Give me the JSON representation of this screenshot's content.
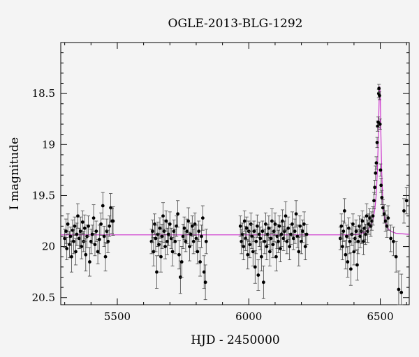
{
  "chart_data": {
    "type": "scatter",
    "title": "OGLE-2013-BLG-1292",
    "xlabel": "HJD - 2450000",
    "ylabel": "I magnitude",
    "xlim": [
      5285,
      6610
    ],
    "ylim": [
      20.57,
      18.0
    ],
    "y_inverted": true,
    "x_ticks": [
      5500,
      6000,
      6500
    ],
    "y_ticks": [
      18.5,
      19,
      19.5,
      20,
      20.5
    ],
    "grid": false,
    "baseline_mag": 19.885,
    "colors": {
      "points": "#000000",
      "model": "#cc33cc",
      "errorbar": "#444444"
    },
    "model_curve": {
      "x": [
        5285,
        6380,
        6420,
        6440,
        6455,
        6465,
        6473,
        6480,
        6485,
        6489,
        6492,
        6494,
        6496,
        6498,
        6500,
        6502,
        6505,
        6510,
        6518,
        6528,
        6540,
        6560,
        6610
      ],
      "y": [
        19.885,
        19.885,
        19.88,
        19.86,
        19.83,
        19.79,
        19.73,
        19.62,
        19.48,
        19.25,
        18.98,
        18.75,
        18.52,
        18.43,
        18.55,
        18.85,
        19.25,
        19.58,
        19.75,
        19.82,
        19.85,
        19.87,
        19.88
      ]
    },
    "series": [
      {
        "name": "",
        "points": [
          [
            5300,
            19.92,
            0.09
          ],
          [
            5305,
            19.85,
            0.12
          ],
          [
            5308,
            20.02,
            0.11
          ],
          [
            5312,
            19.78,
            0.1
          ],
          [
            5318,
            19.98,
            0.13
          ],
          [
            5322,
            19.9,
            0.09
          ],
          [
            5326,
            20.1,
            0.15
          ],
          [
            5330,
            19.84,
            0.1
          ],
          [
            5334,
            19.95,
            0.12
          ],
          [
            5338,
            19.8,
            0.09
          ],
          [
            5342,
            20.05,
            0.13
          ],
          [
            5346,
            19.88,
            0.11
          ],
          [
            5350,
            19.7,
            0.12
          ],
          [
            5355,
            19.92,
            0.1
          ],
          [
            5360,
            19.85,
            0.14
          ],
          [
            5364,
            20.0,
            0.12
          ],
          [
            5368,
            19.76,
            0.11
          ],
          [
            5372,
            19.95,
            0.1
          ],
          [
            5376,
            19.82,
            0.13
          ],
          [
            5380,
            20.08,
            0.16
          ],
          [
            5385,
            19.9,
            0.11
          ],
          [
            5390,
            19.8,
            0.1
          ],
          [
            5395,
            20.15,
            0.14
          ],
          [
            5400,
            19.95,
            0.12
          ],
          [
            5405,
            19.88,
            0.09
          ],
          [
            5410,
            19.72,
            0.13
          ],
          [
            5415,
            19.98,
            0.11
          ],
          [
            5420,
            19.85,
            0.1
          ],
          [
            5426,
            20.05,
            0.12
          ],
          [
            5432,
            19.93,
            0.14
          ],
          [
            5438,
            19.78,
            0.11
          ],
          [
            5445,
            19.6,
            0.13
          ],
          [
            5450,
            19.9,
            0.1
          ],
          [
            5455,
            20.1,
            0.14
          ],
          [
            5460,
            19.85,
            0.12
          ],
          [
            5465,
            19.95,
            0.11
          ],
          [
            5470,
            19.8,
            0.1
          ],
          [
            5475,
            19.62,
            0.14
          ],
          [
            5480,
            19.75,
            0.12
          ],
          [
            5484,
            19.75,
            0.14
          ],
          [
            5630,
            19.95,
            0.12
          ],
          [
            5634,
            19.85,
            0.11
          ],
          [
            5638,
            20.05,
            0.14
          ],
          [
            5642,
            19.78,
            0.1
          ],
          [
            5646,
            19.92,
            0.13
          ],
          [
            5650,
            20.25,
            0.16
          ],
          [
            5654,
            19.88,
            0.12
          ],
          [
            5658,
            19.98,
            0.11
          ],
          [
            5662,
            19.82,
            0.1
          ],
          [
            5666,
            20.1,
            0.15
          ],
          [
            5670,
            19.9,
            0.12
          ],
          [
            5674,
            19.7,
            0.13
          ],
          [
            5678,
            19.85,
            0.11
          ],
          [
            5682,
            20.0,
            0.12
          ],
          [
            5686,
            19.75,
            0.1
          ],
          [
            5690,
            19.95,
            0.13
          ],
          [
            5695,
            19.88,
            0.11
          ],
          [
            5700,
            19.78,
            0.12
          ],
          [
            5705,
            19.92,
            0.1
          ],
          [
            5710,
            20.05,
            0.14
          ],
          [
            5715,
            19.85,
            0.11
          ],
          [
            5720,
            19.95,
            0.12
          ],
          [
            5725,
            19.8,
            0.1
          ],
          [
            5730,
            19.68,
            0.13
          ],
          [
            5735,
            20.08,
            0.14
          ],
          [
            5740,
            20.3,
            0.16
          ],
          [
            5745,
            20.15,
            0.15
          ],
          [
            5750,
            19.9,
            0.12
          ],
          [
            5755,
            19.82,
            0.11
          ],
          [
            5760,
            19.95,
            0.1
          ],
          [
            5765,
            19.85,
            0.12
          ],
          [
            5770,
            19.75,
            0.13
          ],
          [
            5775,
            20.0,
            0.14
          ],
          [
            5780,
            19.88,
            0.11
          ],
          [
            5785,
            19.8,
            0.1
          ],
          [
            5790,
            19.95,
            0.12
          ],
          [
            5795,
            19.78,
            0.11
          ],
          [
            5800,
            19.92,
            0.13
          ],
          [
            5805,
            20.05,
            0.12
          ],
          [
            5810,
            19.85,
            0.1
          ],
          [
            5815,
            20.15,
            0.14
          ],
          [
            5820,
            19.9,
            0.11
          ],
          [
            5825,
            19.72,
            0.12
          ],
          [
            5830,
            20.25,
            0.16
          ],
          [
            5835,
            20.35,
            0.17
          ],
          [
            5838,
            19.95,
            0.12
          ],
          [
            5968,
            19.8,
            0.1
          ],
          [
            5972,
            19.95,
            0.12
          ],
          [
            5976,
            19.88,
            0.11
          ],
          [
            5980,
            20.0,
            0.13
          ],
          [
            5984,
            19.75,
            0.1
          ],
          [
            5988,
            19.92,
            0.12
          ],
          [
            5992,
            19.82,
            0.11
          ],
          [
            5996,
            20.08,
            0.14
          ],
          [
            6000,
            19.85,
            0.1
          ],
          [
            6004,
            19.98,
            0.13
          ],
          [
            6008,
            19.78,
            0.11
          ],
          [
            6012,
            19.9,
            0.12
          ],
          [
            6016,
            20.05,
            0.14
          ],
          [
            6020,
            19.85,
            0.1
          ],
          [
            6024,
            20.2,
            0.16
          ],
          [
            6028,
            19.95,
            0.12
          ],
          [
            6032,
            19.8,
            0.11
          ],
          [
            6036,
            20.28,
            0.15
          ],
          [
            6040,
            19.88,
            0.12
          ],
          [
            6044,
            19.92,
            0.11
          ],
          [
            6048,
            20.1,
            0.14
          ],
          [
            6052,
            19.85,
            0.1
          ],
          [
            6056,
            20.35,
            0.16
          ],
          [
            6060,
            19.95,
            0.12
          ],
          [
            6064,
            19.78,
            0.11
          ],
          [
            6068,
            20.0,
            0.13
          ],
          [
            6072,
            19.88,
            0.1
          ],
          [
            6076,
            19.82,
            0.12
          ],
          [
            6080,
            20.05,
            0.14
          ],
          [
            6084,
            19.92,
            0.11
          ],
          [
            6088,
            19.75,
            0.12
          ],
          [
            6092,
            19.98,
            0.13
          ],
          [
            6096,
            19.85,
            0.1
          ],
          [
            6100,
            19.78,
            0.11
          ],
          [
            6104,
            20.1,
            0.14
          ],
          [
            6108,
            19.9,
            0.12
          ],
          [
            6112,
            19.95,
            0.11
          ],
          [
            6116,
            19.8,
            0.1
          ],
          [
            6120,
            20.02,
            0.13
          ],
          [
            6124,
            19.88,
            0.12
          ],
          [
            6128,
            19.75,
            0.11
          ],
          [
            6132,
            19.92,
            0.12
          ],
          [
            6136,
            19.85,
            0.1
          ],
          [
            6140,
            19.7,
            0.14
          ],
          [
            6145,
            19.95,
            0.12
          ],
          [
            6150,
            19.82,
            0.11
          ],
          [
            6155,
            20.0,
            0.13
          ],
          [
            6160,
            19.88,
            0.1
          ],
          [
            6165,
            19.78,
            0.12
          ],
          [
            6170,
            19.92,
            0.11
          ],
          [
            6175,
            19.85,
            0.12
          ],
          [
            6180,
            19.68,
            0.13
          ],
          [
            6185,
            19.9,
            0.11
          ],
          [
            6190,
            20.05,
            0.14
          ],
          [
            6195,
            19.8,
            0.1
          ],
          [
            6200,
            19.95,
            0.12
          ],
          [
            6205,
            19.85,
            0.11
          ],
          [
            6210,
            19.78,
            0.12
          ],
          [
            6215,
            20.0,
            0.13
          ],
          [
            6220,
            19.88,
            0.1
          ],
          [
            6348,
            19.92,
            0.11
          ],
          [
            6352,
            19.8,
            0.12
          ],
          [
            6356,
            20.0,
            0.13
          ],
          [
            6360,
            19.85,
            0.1
          ],
          [
            6364,
            19.65,
            0.12
          ],
          [
            6368,
            20.08,
            0.14
          ],
          [
            6372,
            19.9,
            0.11
          ],
          [
            6376,
            20.15,
            0.15
          ],
          [
            6380,
            19.82,
            0.1
          ],
          [
            6384,
            19.95,
            0.12
          ],
          [
            6388,
            20.22,
            0.16
          ],
          [
            6392,
            19.88,
            0.11
          ],
          [
            6396,
            19.78,
            0.1
          ],
          [
            6400,
            20.05,
            0.13
          ],
          [
            6404,
            19.92,
            0.12
          ],
          [
            6408,
            19.85,
            0.11
          ],
          [
            6412,
            20.18,
            0.15
          ],
          [
            6416,
            19.95,
            0.12
          ],
          [
            6420,
            19.8,
            0.1
          ],
          [
            6424,
            19.9,
            0.11
          ],
          [
            6428,
            19.85,
            0.12
          ],
          [
            6432,
            19.75,
            0.1
          ],
          [
            6436,
            19.95,
            0.13
          ],
          [
            6440,
            19.82,
            0.11
          ],
          [
            6444,
            19.88,
            0.1
          ],
          [
            6448,
            19.7,
            0.12
          ],
          [
            6452,
            19.85,
            0.11
          ],
          [
            6456,
            19.78,
            0.1
          ],
          [
            6460,
            19.72,
            0.09
          ],
          [
            6464,
            19.8,
            0.1
          ],
          [
            6468,
            19.75,
            0.09
          ],
          [
            6472,
            19.7,
            0.09
          ],
          [
            6476,
            19.55,
            0.08
          ],
          [
            6479,
            19.42,
            0.07
          ],
          [
            6482,
            19.28,
            0.07
          ],
          [
            6485,
            19.18,
            0.06
          ],
          [
            6488,
            18.98,
            0.05
          ],
          [
            6490,
            18.82,
            0.05
          ],
          [
            6492,
            18.78,
            0.05
          ],
          [
            6494,
            18.5,
            0.04
          ],
          [
            6495,
            18.45,
            0.04
          ],
          [
            6497,
            18.52,
            0.04
          ],
          [
            6499,
            18.8,
            0.05
          ],
          [
            6501,
            19.25,
            0.06
          ],
          [
            6503,
            19.4,
            0.07
          ],
          [
            6506,
            19.52,
            0.07
          ],
          [
            6510,
            19.62,
            0.08
          ],
          [
            6515,
            19.68,
            0.09
          ],
          [
            6520,
            19.75,
            0.1
          ],
          [
            6525,
            19.8,
            0.11
          ],
          [
            6530,
            19.72,
            0.12
          ],
          [
            6540,
            19.92,
            0.13
          ],
          [
            6550,
            19.95,
            0.14
          ],
          [
            6560,
            20.1,
            0.15
          ],
          [
            6570,
            20.42,
            0.18
          ],
          [
            6580,
            20.45,
            0.18
          ],
          [
            6590,
            19.65,
            0.12
          ],
          [
            6600,
            19.55,
            0.13
          ]
        ]
      }
    ]
  }
}
